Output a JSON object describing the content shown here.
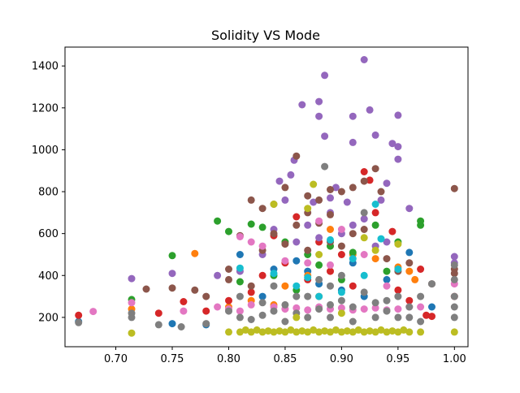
{
  "chart_data": {
    "type": "scatter",
    "title": "Solidity VS Mode",
    "xlabel": "",
    "ylabel": "",
    "xlim": [
      0.655,
      1.012
    ],
    "ylim": [
      60,
      1490
    ],
    "xticks": [
      0.7,
      0.75,
      0.8,
      0.85,
      0.9,
      0.95,
      1.0
    ],
    "xtick_labels": [
      "0.70",
      "0.75",
      "0.80",
      "0.85",
      "0.90",
      "0.95",
      "1.00"
    ],
    "yticks": [
      200,
      400,
      600,
      800,
      1000,
      1200,
      1400
    ],
    "ytick_labels": [
      "200",
      "400",
      "600",
      "800",
      "1000",
      "1200",
      "1400"
    ],
    "grid": false,
    "legend": "none",
    "series": [
      {
        "color": "#1f77b4",
        "points": [
          [
            0.667,
            180
          ],
          [
            0.75,
            170
          ],
          [
            0.78,
            165
          ],
          [
            0.81,
            500
          ],
          [
            0.84,
            430
          ],
          [
            0.86,
            470
          ],
          [
            0.88,
            360
          ],
          [
            0.9,
            330
          ],
          [
            0.92,
            300
          ],
          [
            0.94,
            380
          ],
          [
            0.96,
            510
          ],
          [
            0.98,
            250
          ],
          [
            0.83,
            300
          ],
          [
            0.87,
            420
          ],
          [
            0.91,
            460
          ]
        ]
      },
      {
        "color": "#ff7f0e",
        "points": [
          [
            0.714,
            240
          ],
          [
            0.77,
            505
          ],
          [
            0.8,
            250
          ],
          [
            0.82,
            280
          ],
          [
            0.85,
            350
          ],
          [
            0.87,
            400
          ],
          [
            0.89,
            620
          ],
          [
            0.91,
            500
          ],
          [
            0.93,
            480
          ],
          [
            0.95,
            440
          ],
          [
            0.965,
            380
          ],
          [
            0.88,
            300
          ],
          [
            0.84,
            260
          ],
          [
            0.96,
            420
          ],
          [
            1.0,
            300
          ]
        ]
      },
      {
        "color": "#2ca02c",
        "points": [
          [
            0.714,
            285
          ],
          [
            0.75,
            495
          ],
          [
            0.79,
            660
          ],
          [
            0.8,
            610
          ],
          [
            0.82,
            645
          ],
          [
            0.83,
            630
          ],
          [
            0.85,
            560
          ],
          [
            0.87,
            500
          ],
          [
            0.89,
            540
          ],
          [
            0.91,
            510
          ],
          [
            0.93,
            640
          ],
          [
            0.95,
            560
          ],
          [
            0.97,
            660
          ],
          [
            0.97,
            640
          ],
          [
            0.88,
            450
          ],
          [
            0.84,
            400
          ],
          [
            0.86,
            330
          ],
          [
            0.94,
            420
          ],
          [
            0.9,
            380
          ],
          [
            0.81,
            370
          ]
        ]
      },
      {
        "color": "#d62728",
        "points": [
          [
            0.667,
            210
          ],
          [
            0.738,
            220
          ],
          [
            0.76,
            275
          ],
          [
            0.78,
            230
          ],
          [
            0.8,
            280
          ],
          [
            0.82,
            320
          ],
          [
            0.84,
            590
          ],
          [
            0.86,
            680
          ],
          [
            0.88,
            560
          ],
          [
            0.9,
            500
          ],
          [
            0.92,
            895
          ],
          [
            0.925,
            855
          ],
          [
            0.93,
            700
          ],
          [
            0.945,
            610
          ],
          [
            0.97,
            430
          ],
          [
            0.975,
            210
          ],
          [
            0.98,
            205
          ],
          [
            0.96,
            280
          ],
          [
            0.85,
            460
          ],
          [
            0.87,
            380
          ],
          [
            0.89,
            420
          ],
          [
            0.91,
            350
          ],
          [
            0.95,
            330
          ],
          [
            0.83,
            400
          ]
        ]
      },
      {
        "color": "#9467bd",
        "points": [
          [
            0.714,
            385
          ],
          [
            0.75,
            410
          ],
          [
            0.79,
            400
          ],
          [
            0.81,
            420
          ],
          [
            0.83,
            500
          ],
          [
            0.845,
            850
          ],
          [
            0.85,
            760
          ],
          [
            0.855,
            880
          ],
          [
            0.858,
            950
          ],
          [
            0.865,
            1215
          ],
          [
            0.875,
            750
          ],
          [
            0.88,
            1230
          ],
          [
            0.88,
            1160
          ],
          [
            0.885,
            1065
          ],
          [
            0.885,
            1355
          ],
          [
            0.89,
            770
          ],
          [
            0.895,
            820
          ],
          [
            0.905,
            750
          ],
          [
            0.91,
            1160
          ],
          [
            0.91,
            1035
          ],
          [
            0.92,
            1430
          ],
          [
            0.925,
            1190
          ],
          [
            0.93,
            1070
          ],
          [
            0.935,
            760
          ],
          [
            0.94,
            840
          ],
          [
            0.945,
            1030
          ],
          [
            0.95,
            1015
          ],
          [
            0.95,
            1165
          ],
          [
            0.95,
            955
          ],
          [
            0.96,
            720
          ],
          [
            1.0,
            490
          ],
          [
            1.0,
            460
          ],
          [
            0.86,
            560
          ],
          [
            0.9,
            600
          ],
          [
            0.87,
            640
          ],
          [
            0.89,
            700
          ],
          [
            0.92,
            670
          ],
          [
            0.94,
            560
          ],
          [
            0.84,
            620
          ],
          [
            0.88,
            580
          ],
          [
            0.91,
            640
          ],
          [
            0.93,
            540
          ]
        ]
      },
      {
        "color": "#8c564b",
        "points": [
          [
            0.727,
            335
          ],
          [
            0.75,
            340
          ],
          [
            0.77,
            330
          ],
          [
            0.78,
            300
          ],
          [
            0.8,
            430
          ],
          [
            0.81,
            590
          ],
          [
            0.82,
            760
          ],
          [
            0.83,
            720
          ],
          [
            0.84,
            740
          ],
          [
            0.85,
            820
          ],
          [
            0.86,
            970
          ],
          [
            0.87,
            780
          ],
          [
            0.88,
            760
          ],
          [
            0.89,
            810
          ],
          [
            0.9,
            800
          ],
          [
            0.91,
            820
          ],
          [
            0.92,
            850
          ],
          [
            0.93,
            910
          ],
          [
            0.935,
            800
          ],
          [
            1.0,
            815
          ],
          [
            0.87,
            700
          ],
          [
            0.88,
            650
          ],
          [
            0.89,
            690
          ],
          [
            0.86,
            640
          ],
          [
            0.84,
            600
          ],
          [
            0.91,
            600
          ],
          [
            0.92,
            620
          ],
          [
            0.94,
            480
          ],
          [
            0.96,
            460
          ],
          [
            0.85,
            550
          ],
          [
            0.83,
            520
          ],
          [
            0.9,
            540
          ],
          [
            0.95,
            420
          ],
          [
            0.98,
            360
          ],
          [
            1.0,
            430
          ],
          [
            1.0,
            410
          ],
          [
            0.8,
            380
          ],
          [
            0.82,
            350
          ],
          [
            0.87,
            520
          ],
          [
            0.89,
            560
          ]
        ]
      },
      {
        "color": "#e377c2",
        "points": [
          [
            0.68,
            228
          ],
          [
            0.714,
            270
          ],
          [
            0.76,
            230
          ],
          [
            0.79,
            250
          ],
          [
            0.81,
            585
          ],
          [
            0.82,
            560
          ],
          [
            0.83,
            540
          ],
          [
            0.84,
            250
          ],
          [
            0.85,
            240
          ],
          [
            0.86,
            245
          ],
          [
            0.87,
            235
          ],
          [
            0.88,
            250
          ],
          [
            0.89,
            240
          ],
          [
            0.9,
            245
          ],
          [
            0.91,
            235
          ],
          [
            0.92,
            240
          ],
          [
            0.93,
            245
          ],
          [
            0.94,
            235
          ],
          [
            0.95,
            240
          ],
          [
            0.96,
            250
          ],
          [
            0.88,
            660
          ],
          [
            0.9,
            620
          ],
          [
            0.92,
            500
          ],
          [
            0.85,
            470
          ],
          [
            0.87,
            460
          ],
          [
            0.89,
            450
          ],
          [
            0.94,
            350
          ],
          [
            0.97,
            250
          ],
          [
            1.0,
            360
          ],
          [
            1.0,
            300
          ],
          [
            0.81,
            230
          ],
          [
            0.82,
            260
          ],
          [
            0.8,
            240
          ]
        ]
      },
      {
        "color": "#7f7f7f",
        "points": [
          [
            0.667,
            175
          ],
          [
            0.714,
            200
          ],
          [
            0.714,
            220
          ],
          [
            0.738,
            165
          ],
          [
            0.758,
            155
          ],
          [
            0.78,
            170
          ],
          [
            0.8,
            230
          ],
          [
            0.81,
            200
          ],
          [
            0.82,
            190
          ],
          [
            0.83,
            210
          ],
          [
            0.84,
            230
          ],
          [
            0.85,
            260
          ],
          [
            0.86,
            220
          ],
          [
            0.87,
            200
          ],
          [
            0.88,
            240
          ],
          [
            0.885,
            920
          ],
          [
            0.89,
            260
          ],
          [
            0.9,
            280
          ],
          [
            0.91,
            250
          ],
          [
            0.92,
            700
          ],
          [
            0.93,
            270
          ],
          [
            0.94,
            230
          ],
          [
            0.95,
            200
          ],
          [
            0.96,
            250
          ],
          [
            0.97,
            300
          ],
          [
            0.98,
            360
          ],
          [
            1.0,
            200
          ],
          [
            1.0,
            250
          ],
          [
            1.0,
            300
          ],
          [
            1.0,
            380
          ],
          [
            1.0,
            450
          ],
          [
            0.89,
            200
          ],
          [
            0.86,
            300
          ],
          [
            0.92,
            320
          ],
          [
            0.84,
            350
          ],
          [
            0.88,
            380
          ],
          [
            0.9,
            400
          ],
          [
            0.94,
            280
          ],
          [
            0.96,
            200
          ],
          [
            0.97,
            180
          ],
          [
            0.83,
            270
          ],
          [
            0.81,
            300
          ],
          [
            0.85,
            180
          ],
          [
            0.87,
            300
          ],
          [
            0.91,
            180
          ],
          [
            0.93,
            200
          ],
          [
            0.95,
            300
          ],
          [
            0.89,
            350
          ]
        ]
      },
      {
        "color": "#bcbd22",
        "points": [
          [
            0.714,
            125
          ],
          [
            0.8,
            130
          ],
          [
            0.81,
            130
          ],
          [
            0.82,
            130
          ],
          [
            0.83,
            130
          ],
          [
            0.84,
            130
          ],
          [
            0.85,
            130
          ],
          [
            0.86,
            130
          ],
          [
            0.87,
            130
          ],
          [
            0.88,
            130
          ],
          [
            0.89,
            130
          ],
          [
            0.9,
            130
          ],
          [
            0.91,
            130
          ],
          [
            0.92,
            130
          ],
          [
            0.93,
            130
          ],
          [
            0.94,
            130
          ],
          [
            0.95,
            130
          ],
          [
            0.96,
            130
          ],
          [
            0.97,
            130
          ],
          [
            1.0,
            130
          ],
          [
            0.875,
            835
          ],
          [
            0.84,
            740
          ],
          [
            0.87,
            720
          ],
          [
            0.92,
            580
          ],
          [
            0.93,
            520
          ],
          [
            0.95,
            550
          ],
          [
            0.815,
            140
          ],
          [
            0.825,
            140
          ],
          [
            0.835,
            135
          ],
          [
            0.845,
            135
          ],
          [
            0.855,
            140
          ],
          [
            0.865,
            135
          ],
          [
            0.875,
            140
          ],
          [
            0.885,
            135
          ],
          [
            0.895,
            140
          ],
          [
            0.905,
            135
          ],
          [
            0.915,
            140
          ],
          [
            0.925,
            135
          ],
          [
            0.935,
            140
          ],
          [
            0.945,
            135
          ],
          [
            0.955,
            140
          ],
          [
            0.86,
            200
          ],
          [
            0.9,
            220
          ],
          [
            0.88,
            500
          ]
        ]
      },
      {
        "color": "#17becf",
        "points": [
          [
            0.81,
            435
          ],
          [
            0.84,
            410
          ],
          [
            0.87,
            390
          ],
          [
            0.89,
            570
          ],
          [
            0.91,
            480
          ],
          [
            0.93,
            740
          ],
          [
            0.935,
            575
          ],
          [
            0.95,
            430
          ],
          [
            0.86,
            350
          ],
          [
            0.9,
            320
          ],
          [
            0.92,
            400
          ],
          [
            0.88,
            300
          ]
        ]
      }
    ]
  }
}
